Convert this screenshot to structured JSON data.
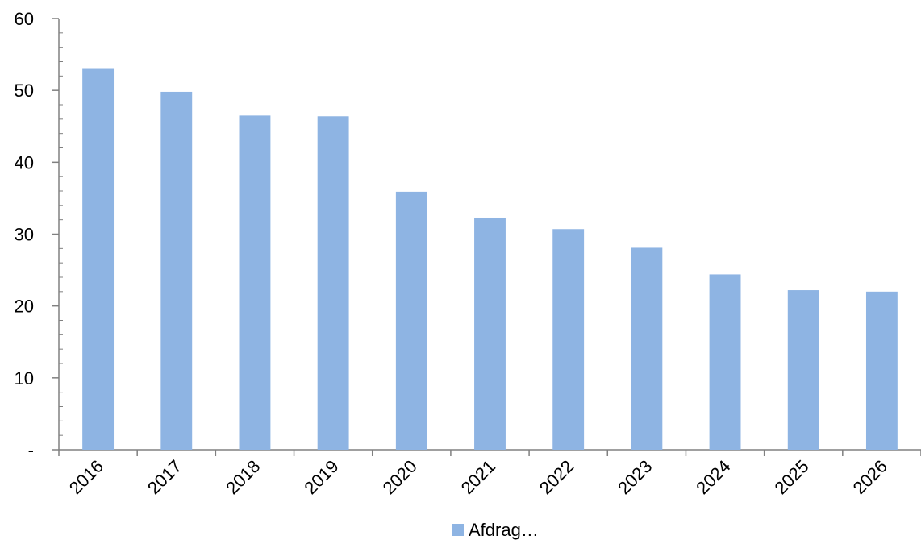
{
  "chart_data": {
    "type": "bar",
    "categories": [
      "2016",
      "2017",
      "2018",
      "2019",
      "2020",
      "2021",
      "2022",
      "2023",
      "2024",
      "2025",
      "2026"
    ],
    "series": [
      {
        "name": "Afdrag…",
        "values": [
          53.1,
          49.8,
          46.5,
          46.4,
          35.9,
          32.3,
          30.7,
          28.1,
          24.4,
          22.2,
          22.0
        ]
      }
    ],
    "ylim": [
      0,
      60
    ],
    "yticks": [
      0,
      10,
      20,
      30,
      40,
      50,
      60
    ],
    "ytick_labels": [
      "-",
      "10",
      "20",
      "30",
      "40",
      "50",
      "60"
    ],
    "grid": false,
    "legend_position": "bottom-center",
    "colors": {
      "bar": "#8eb4e3",
      "axis": "#808080"
    }
  }
}
